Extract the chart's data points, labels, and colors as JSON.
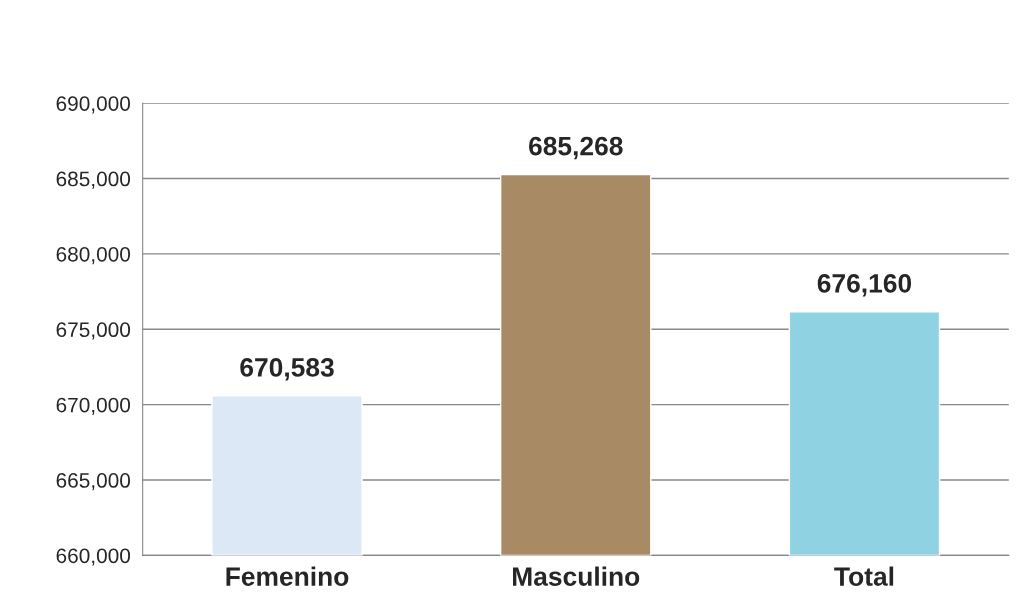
{
  "chart_data": {
    "type": "bar",
    "categories": [
      "Femenino",
      "Masculino",
      "Total"
    ],
    "values": [
      670583,
      685268,
      676160
    ],
    "colors": [
      "#dce8f5",
      "#a88a64",
      "#8fd3e3"
    ],
    "value_labels": [
      "670,583",
      "685,268",
      "676,160"
    ],
    "ylim": [
      660000,
      690000
    ],
    "yticks": [
      {
        "value": 660000,
        "label": "660,000"
      },
      {
        "value": 665000,
        "label": "665,000"
      },
      {
        "value": 670000,
        "label": "670,000"
      },
      {
        "value": 675000,
        "label": "675,000"
      },
      {
        "value": 680000,
        "label": "680,000"
      },
      {
        "value": 685000,
        "label": "685,000"
      },
      {
        "value": 690000,
        "label": "690,000"
      }
    ],
    "grid": "y",
    "legend": false
  }
}
